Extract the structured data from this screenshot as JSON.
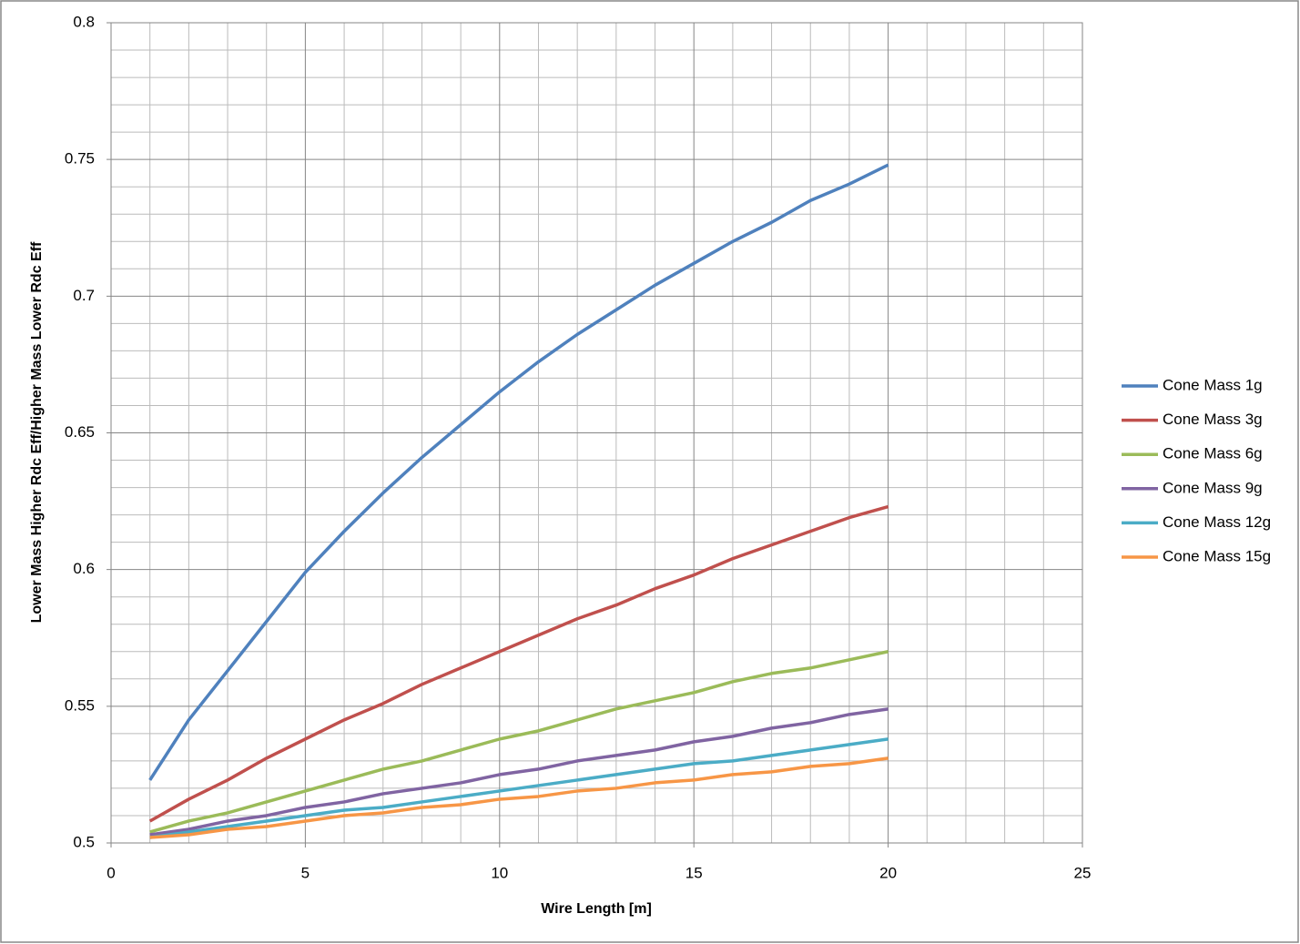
{
  "chart_data": {
    "type": "line",
    "x_label": "Wire Length [m]",
    "y_label": "Lower Mass Higher Rdc Eff/Higher Mass Lower Rdc Eff",
    "x": [
      1,
      2,
      3,
      4,
      5,
      6,
      7,
      8,
      9,
      10,
      11,
      12,
      13,
      14,
      15,
      16,
      17,
      18,
      19,
      20
    ],
    "series": [
      {
        "name": "Cone Mass 1g",
        "color": "#4f81bd",
        "values": [
          0.523,
          0.545,
          0.563,
          0.581,
          0.599,
          0.614,
          0.628,
          0.641,
          0.653,
          0.665,
          0.676,
          0.686,
          0.695,
          0.704,
          0.712,
          0.72,
          0.727,
          0.735,
          0.741,
          0.748
        ]
      },
      {
        "name": "Cone Mass 3g",
        "color": "#c0504d",
        "values": [
          0.508,
          0.516,
          0.523,
          0.531,
          0.538,
          0.545,
          0.551,
          0.558,
          0.564,
          0.57,
          0.576,
          0.582,
          0.587,
          0.593,
          0.598,
          0.604,
          0.609,
          0.614,
          0.619,
          0.623
        ]
      },
      {
        "name": "Cone Mass 6g",
        "color": "#9bbb59",
        "values": [
          0.504,
          0.508,
          0.511,
          0.515,
          0.519,
          0.523,
          0.527,
          0.53,
          0.534,
          0.538,
          0.541,
          0.545,
          0.549,
          0.552,
          0.555,
          0.559,
          0.562,
          0.564,
          0.567,
          0.57
        ]
      },
      {
        "name": "Cone Mass 9g",
        "color": "#8064a2",
        "values": [
          0.503,
          0.505,
          0.508,
          0.51,
          0.513,
          0.515,
          0.518,
          0.52,
          0.522,
          0.525,
          0.527,
          0.53,
          0.532,
          0.534,
          0.537,
          0.539,
          0.542,
          0.544,
          0.547,
          0.549
        ]
      },
      {
        "name": "Cone Mass 12g",
        "color": "#4bacc6",
        "values": [
          0.502,
          0.504,
          0.506,
          0.508,
          0.51,
          0.512,
          0.513,
          0.515,
          0.517,
          0.519,
          0.521,
          0.523,
          0.525,
          0.527,
          0.529,
          0.53,
          0.532,
          0.534,
          0.536,
          0.538
        ]
      },
      {
        "name": "Cone Mass 15g",
        "color": "#f79646",
        "values": [
          0.502,
          0.503,
          0.505,
          0.506,
          0.508,
          0.51,
          0.511,
          0.513,
          0.514,
          0.516,
          0.517,
          0.519,
          0.52,
          0.522,
          0.523,
          0.525,
          0.526,
          0.528,
          0.529,
          0.531
        ]
      }
    ],
    "xlim": [
      0,
      25
    ],
    "xticks": [
      0,
      5,
      10,
      15,
      20,
      25
    ],
    "ylim": [
      0.5,
      0.8
    ],
    "yticks": [
      0.5,
      0.55,
      0.6,
      0.65,
      0.7,
      0.75,
      0.8
    ],
    "grid": true,
    "minor_grid": true,
    "legend": "right"
  }
}
